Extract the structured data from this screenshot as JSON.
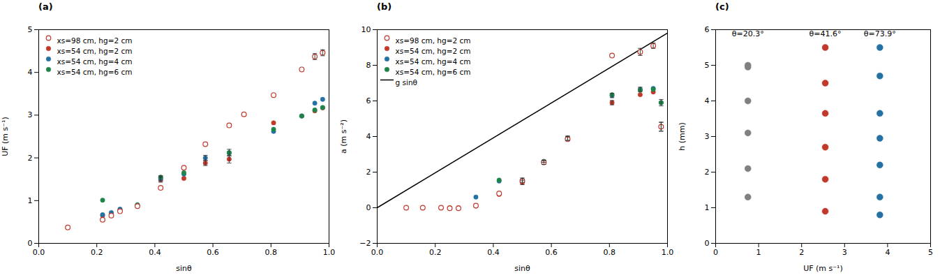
{
  "chart_data": [
    {
      "type": "scatter",
      "title": "(a)",
      "xlabel": "sinθ",
      "ylabel": "UF (m s⁻¹)",
      "xlim": [
        0,
        1
      ],
      "ylim": [
        0,
        5
      ],
      "xticks": [
        {
          "value": 0,
          "label": "0.0"
        },
        0.2,
        0.4,
        0.6,
        0.8,
        {
          "value": 1.0,
          "label": "1.0"
        }
      ],
      "yticks": [
        0,
        1,
        2,
        3,
        4,
        5
      ],
      "grid": false,
      "legend": "upper left",
      "series": [
        {
          "name": "xs=98 cm, hg=2 cm",
          "color": "#c0392b",
          "marker": "circle_open",
          "x": [
            0.1,
            0.22,
            0.25,
            0.28,
            0.34,
            0.42,
            0.5,
            0.574,
            0.656,
            0.707,
            0.809,
            0.906,
            0.951,
            0.978
          ],
          "values": [
            0.37,
            0.55,
            0.65,
            0.75,
            0.87,
            1.3,
            1.77,
            2.32,
            2.76,
            3.02,
            3.47,
            4.07,
            4.37,
            4.46
          ],
          "yerr": [
            0,
            0,
            0,
            0,
            0,
            0,
            0,
            0,
            0,
            0,
            0,
            0,
            0.07,
            0.07
          ]
        },
        {
          "name": "xs=54 cm, hg=2 cm",
          "color": "#c0392b",
          "marker": "circle",
          "x": [
            0.22,
            0.25,
            0.28,
            0.34,
            0.42,
            0.5,
            0.574,
            0.656,
            0.809,
            0.906,
            0.951,
            0.978
          ],
          "values": [
            0.65,
            0.7,
            0.78,
            0.87,
            1.49,
            1.52,
            1.88,
            1.97,
            2.82,
            2.98,
            3.1,
            3.17
          ],
          "yerr": [
            0,
            0,
            0,
            0,
            0.06,
            0,
            0.06,
            0.09,
            0,
            0,
            0,
            0
          ]
        },
        {
          "name": "xs=54 cm, hg=4 cm",
          "color": "#2471a3",
          "marker": "circle",
          "x": [
            0.22,
            0.25,
            0.28,
            0.34,
            0.42,
            0.5,
            0.574,
            0.656,
            0.809,
            0.906,
            0.951,
            0.978
          ],
          "values": [
            0.67,
            0.72,
            0.8,
            0.9,
            1.52,
            1.62,
            2.0,
            2.12,
            2.62,
            2.98,
            3.28,
            3.37
          ],
          "yerr": [
            0,
            0,
            0,
            0,
            0.06,
            0,
            0.06,
            0.08,
            0,
            0,
            0,
            0
          ]
        },
        {
          "name": "xs=54 cm, hg=6 cm",
          "color": "#1e8449",
          "marker": "circle",
          "x": [
            0.22,
            0.34,
            0.42,
            0.5,
            0.656,
            0.809,
            0.906,
            0.951,
            0.978
          ],
          "values": [
            1.01,
            0.9,
            1.55,
            1.65,
            2.12,
            2.67,
            2.98,
            3.12,
            3.18
          ],
          "yerr": [
            0,
            0,
            0,
            0,
            0,
            0,
            0,
            0,
            0
          ]
        }
      ]
    },
    {
      "type": "scatter",
      "title": "(b)",
      "xlabel": "sinθ",
      "ylabel": "a (m s⁻²)",
      "xlim": [
        0,
        1
      ],
      "ylim": [
        -2,
        10
      ],
      "xticks": [
        {
          "value": 0,
          "label": "0.0"
        },
        0.2,
        0.4,
        0.6,
        0.8,
        {
          "value": 1.0,
          "label": "1.0"
        }
      ],
      "yticks": [
        {
          "value": -2,
          "label": "−2"
        },
        0,
        2,
        4,
        6,
        8,
        10
      ],
      "grid": false,
      "legend": "upper left",
      "series": [
        {
          "name": "xs=98 cm, hg=2 cm",
          "color": "#c0392b",
          "marker": "circle_open",
          "x": [
            0.1,
            0.157,
            0.22,
            0.25,
            0.28,
            0.34,
            0.42,
            0.5,
            0.574,
            0.656,
            0.809,
            0.906,
            0.951,
            0.978
          ],
          "values": [
            0.0,
            0.0,
            0.0,
            -0.03,
            -0.03,
            0.12,
            0.8,
            1.5,
            2.55,
            3.85,
            8.55,
            8.75,
            9.1,
            4.55
          ],
          "yerr": [
            0,
            0,
            0,
            0,
            0,
            0,
            0,
            0,
            0,
            0,
            0,
            0.2,
            0.15,
            0.25
          ]
        },
        {
          "name": "xs=54 cm, hg=2 cm",
          "color": "#c0392b",
          "marker": "circle",
          "x": [
            0.22,
            0.25,
            0.28,
            0.34,
            0.42,
            0.5,
            0.574,
            0.656,
            0.809,
            0.906,
            0.951,
            0.978
          ],
          "values": [
            0.0,
            0.0,
            0.0,
            0.1,
            0.75,
            1.42,
            2.55,
            3.9,
            5.9,
            6.35,
            6.5,
            4.55
          ],
          "yerr": [
            0,
            0,
            0,
            0,
            0,
            0.12,
            0.12,
            0.12,
            0.12,
            0,
            0,
            0.25
          ]
        },
        {
          "name": "xs=54 cm, hg=4 cm",
          "color": "#2471a3",
          "marker": "circle",
          "x": [
            0.34,
            0.42,
            0.5,
            0.574,
            0.656,
            0.809,
            0.906,
            0.951,
            0.978
          ],
          "values": [
            0.6,
            1.5,
            1.55,
            2.6,
            3.9,
            6.3,
            6.65,
            6.7,
            5.9
          ],
          "yerr": [
            0,
            0,
            0.12,
            0.05,
            0.12,
            0.12,
            0.12,
            0,
            0.18
          ]
        },
        {
          "name": "xs=54 cm, hg=6 cm",
          "color": "#1e8449",
          "marker": "circle",
          "x": [
            0.42,
            0.574,
            0.656,
            0.809,
            0.906,
            0.951,
            0.978
          ],
          "values": [
            1.55,
            2.6,
            3.9,
            6.35,
            6.6,
            6.65,
            5.9
          ],
          "yerr": [
            0,
            0,
            0,
            0,
            0,
            0,
            0
          ]
        },
        {
          "name": "g sinθ",
          "color": "#000000",
          "type": "line",
          "line_style": "solid",
          "x": [
            0,
            1
          ],
          "values": [
            0,
            9.81
          ]
        }
      ]
    },
    {
      "type": "scatter",
      "title": "(c)",
      "xlabel": "UF (m s⁻¹)",
      "ylabel": "h (mm)",
      "xlim": [
        0,
        5
      ],
      "ylim": [
        0,
        6
      ],
      "xticks": [
        0,
        1,
        2,
        3,
        4,
        5
      ],
      "yticks": [
        0,
        1,
        2,
        3,
        4,
        5,
        6
      ],
      "grid": false,
      "annotations": [
        {
          "text": "θ=20.3°",
          "x": 0.75,
          "y": 5.82
        },
        {
          "text": "θ=41.6°",
          "x": 2.55,
          "y": 5.82
        },
        {
          "text": "θ=73.9°",
          "x": 3.82,
          "y": 5.82
        }
      ],
      "series": [
        {
          "color": "#808080",
          "marker": "circle",
          "x": [
            0.75,
            0.75,
            0.75,
            0.75,
            0.75,
            0.75
          ],
          "values": [
            1.3,
            2.1,
            3.1,
            4.0,
            4.95,
            5.0
          ]
        },
        {
          "color": "#c0392b",
          "marker": "circle",
          "x": [
            2.55,
            2.55,
            2.55,
            2.55,
            2.55,
            2.55
          ],
          "values": [
            0.9,
            1.8,
            2.7,
            3.65,
            4.5,
            5.5
          ]
        },
        {
          "color": "#2471a3",
          "marker": "circle",
          "x": [
            3.82,
            3.82,
            3.82,
            3.82,
            3.82,
            3.82,
            3.82
          ],
          "values": [
            0.8,
            1.3,
            2.2,
            2.95,
            3.65,
            4.7,
            5.5
          ]
        }
      ]
    }
  ]
}
